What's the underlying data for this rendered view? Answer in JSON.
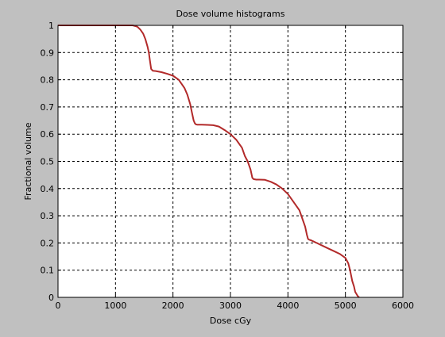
{
  "figure": {
    "background": "#c0c0c0",
    "axes_background": "#ffffff",
    "line_color": "#b22a2a"
  },
  "chart_data": {
    "type": "line",
    "title": "Dose volume histograms",
    "xlabel": "Dose cGy",
    "ylabel": "Fractional volume",
    "xlim": [
      0,
      6000
    ],
    "ylim": [
      0,
      1
    ],
    "grid": true,
    "grid_style": "dashed",
    "x_ticks": [
      0,
      1000,
      2000,
      3000,
      4000,
      5000,
      6000
    ],
    "x_tick_labels": [
      "0",
      "1000",
      "2000",
      "3000",
      "4000",
      "5000",
      "6000"
    ],
    "y_ticks": [
      0,
      0.1,
      0.2,
      0.3,
      0.4,
      0.5,
      0.6,
      0.7,
      0.8,
      0.9,
      1
    ],
    "y_tick_labels": [
      "0",
      "0.1",
      "0.2",
      "0.3",
      "0.4",
      "0.5",
      "0.6",
      "0.7",
      "0.8",
      "0.9",
      "1"
    ],
    "series": [
      {
        "color": "#b22a2a",
        "x": [
          0,
          1200,
          1300,
          1380,
          1430,
          1480,
          1520,
          1560,
          1580,
          1600,
          1620,
          1650,
          1700,
          1800,
          1900,
          2000,
          2100,
          2200,
          2250,
          2300,
          2330,
          2360,
          2380,
          2400,
          2420,
          2450,
          2500,
          2600,
          2700,
          2800,
          2900,
          3000,
          3100,
          3200,
          3250,
          3300,
          3350,
          3380,
          3400,
          3420,
          3450,
          3500,
          3600,
          3700,
          3800,
          3900,
          4000,
          4100,
          4200,
          4250,
          4300,
          4330,
          4350,
          4370,
          4400,
          4450,
          4500,
          4600,
          4700,
          4800,
          4900,
          5000,
          5050,
          5080,
          5100,
          5120,
          5150,
          5170,
          5200,
          5220,
          5240
        ],
        "y": [
          1.0,
          1.0,
          1.0,
          0.995,
          0.985,
          0.97,
          0.95,
          0.92,
          0.9,
          0.87,
          0.84,
          0.833,
          0.832,
          0.828,
          0.822,
          0.815,
          0.8,
          0.77,
          0.745,
          0.71,
          0.68,
          0.65,
          0.64,
          0.636,
          0.635,
          0.635,
          0.635,
          0.634,
          0.633,
          0.628,
          0.615,
          0.6,
          0.58,
          0.55,
          0.52,
          0.5,
          0.47,
          0.44,
          0.435,
          0.434,
          0.433,
          0.433,
          0.432,
          0.425,
          0.415,
          0.4,
          0.38,
          0.35,
          0.32,
          0.29,
          0.26,
          0.23,
          0.215,
          0.212,
          0.21,
          0.205,
          0.2,
          0.19,
          0.18,
          0.17,
          0.16,
          0.145,
          0.125,
          0.1,
          0.08,
          0.06,
          0.04,
          0.02,
          0.01,
          0.003,
          0.0
        ]
      }
    ]
  }
}
